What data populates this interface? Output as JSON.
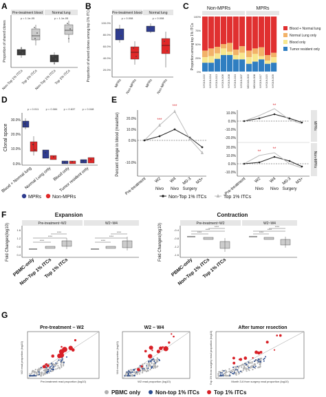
{
  "panels": {
    "A": "A",
    "B": "B",
    "C": "C",
    "D": "D",
    "E": "E",
    "F": "F",
    "G": "G"
  },
  "panel_a": {
    "facets": [
      "Pre-treatment blood",
      "Normal lung"
    ],
    "pvals": [
      "p = 1.1e-05",
      "p = 1.1e-05"
    ],
    "ylabel": "Proportion of shared clones",
    "xcats": [
      "Non-Top 1% ITCs",
      "Top 1% ITCs",
      "Non-Top 1% ITCs",
      "Top 1% ITCs"
    ],
    "colors": {
      "non_top": "#3b3b3b",
      "top": "#cccccc"
    }
  },
  "panel_b": {
    "facets": [
      "Pre-treatment blood",
      "Normal lung"
    ],
    "pvals": [
      "p = 0.008",
      "p = 0.008"
    ],
    "ylabel": "Proportion of shared clones among top 1% ITCs",
    "yticks": [
      "100.0%",
      "80.0%",
      "60.0%",
      "40.0%",
      "20.0%"
    ],
    "xcats": [
      "MPRs",
      "Non-MPRs",
      "MPRs",
      "Non-MPRs"
    ],
    "colors": {
      "mpr": "#2f3c8f",
      "non_mpr": "#e02828"
    }
  },
  "panel_c": {
    "groups": [
      "Non-MPRs",
      "MPRs"
    ],
    "ylabel": "Proportion among top 1% ITCs",
    "yticks": [
      "100%",
      "75%",
      "50%",
      "25%",
      "0%"
    ],
    "samples_nonmpr": [
      "NY016-022",
      "NY016-024",
      "NY016-013",
      "NY016-006",
      "NY016-008",
      "NY016-010",
      "NY016-007"
    ],
    "samples_mpr": [
      "MD043-003",
      "MD043-008",
      "NY016-017",
      "NY016-015",
      "NY016-009"
    ],
    "legend": [
      {
        "label": "Blood + Normal lung",
        "color": "#e03030"
      },
      {
        "label": "Normal Lung only",
        "color": "#f2b268"
      },
      {
        "label": "Blood only",
        "color": "#f7e78e"
      },
      {
        "label": "Tumor resident only",
        "color": "#2f7ec1"
      }
    ]
  },
  "panel_d": {
    "ylabel": "Clonal space",
    "yticks": [
      "30.0%",
      "20.0%",
      "10.0%",
      "0.0%"
    ],
    "pvals": [
      "p = 0.011",
      "p = 0.084",
      "p = 0.637",
      "p = 0.048"
    ],
    "xcats": [
      "Blood + Normal lung",
      "Normal Lung only",
      "Blood only",
      "Tumor resident only"
    ],
    "legend": [
      {
        "label": "MPRs",
        "color": "#2f3c8f"
      },
      {
        "label": "Non-MPRs",
        "color": "#e02828"
      }
    ]
  },
  "panel_e": {
    "ylabel": "Percent change in blood (meanfse)",
    "yticks_left": [
      "20.0%",
      "10.0%",
      "0.0%",
      "-10.0%"
    ],
    "yticks_right_top": [
      "10.0%",
      "0.0%",
      "-10.0%",
      "-20.0%"
    ],
    "yticks_right_bottom": [
      "20.0%",
      "10.0%",
      "0.0%",
      "-10.0%"
    ],
    "xcats": [
      "Pre-treatment",
      "W2",
      "W4",
      "M0-3",
      "M3+"
    ],
    "events": [
      "Nivo",
      "Nivo",
      "Surgery"
    ],
    "strips": [
      "MPRs",
      "Non-MPRs"
    ],
    "sig": "***",
    "sig2": "**",
    "legend": [
      {
        "label": "Non-Top 1% ITCs",
        "color": "#222222"
      },
      {
        "label": "Top 1% ITCs",
        "color": "#bbbbbb"
      }
    ]
  },
  "panel_f": {
    "titles": [
      "Expansion",
      "Contraction"
    ],
    "facets_left": [
      "Pre-treatment~W2",
      "W2~W4"
    ],
    "facets_right": [
      "Pre-treatment~W2",
      "W2~W4"
    ],
    "ylabel": "Fold Changes(log10)",
    "yticks_left": [
      "1.6",
      "1.2",
      "0.8",
      "0.4"
    ],
    "yticks_right": [
      "-0.4",
      "-0.8",
      "-1.2",
      "-1.6"
    ],
    "xcats": [
      "PBMC-only",
      "Non-Top 1% ITCs",
      "Top 1% ITCs"
    ],
    "sig": "****"
  },
  "panel_g": {
    "titles": [
      "Pre-treatment – W2",
      "W2 – W4",
      "After tumor resection"
    ],
    "ylabels": [
      "W2 read proportion (log10)",
      "W4 read proportion (log10)",
      "Top 1% from surgery read proportion (log10)"
    ],
    "xlabels": [
      "Pre-treatment read proportion (log10)",
      "W2 read proportion (log10)",
      "Month 3-6 from surgery read proportion (log10)"
    ],
    "legend": [
      {
        "label": "PBMC only",
        "color": "#b0b0b0"
      },
      {
        "label": "Non-top 1% ITCs",
        "color": "#2a4b8d"
      },
      {
        "label": "Top 1% ITCs",
        "color": "#d81f26"
      }
    ]
  }
}
